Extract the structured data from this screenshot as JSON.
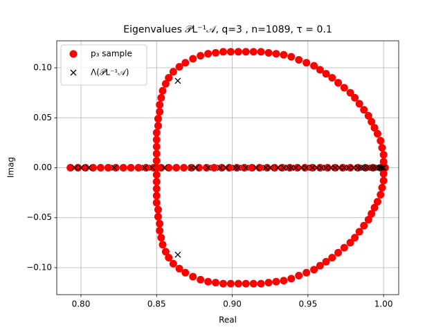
{
  "chart_data": {
    "type": "scatter",
    "title": "Eigenvalues 𝒫L⁻¹𝒜, q=3 , n=1089, τ = 0.1",
    "xlabel": "Real",
    "ylabel": "Imag",
    "xlim": [
      0.784,
      1.01
    ],
    "ylim": [
      -0.127,
      0.127
    ],
    "xticks": [
      {
        "value": 0.8,
        "label": "0.80"
      },
      {
        "value": 0.85,
        "label": "0.85"
      },
      {
        "value": 0.9,
        "label": "0.90"
      },
      {
        "value": 0.95,
        "label": "0.95"
      },
      {
        "value": 1.0,
        "label": "1.00"
      }
    ],
    "yticks": [
      {
        "value": -0.1,
        "label": "−0.10"
      },
      {
        "value": -0.05,
        "label": "−0.05"
      },
      {
        "value": 0,
        "label": "0.00"
      },
      {
        "value": 0.05,
        "label": "0.05"
      },
      {
        "value": 0.1,
        "label": "0.10"
      }
    ],
    "grid": true,
    "legend": "upper left",
    "series": [
      {
        "name": "p₃ sample",
        "color": "#ff0000",
        "marker": "o",
        "x": [
          0.793,
          0.798,
          0.803,
          0.808,
          0.813,
          0.818,
          0.823,
          0.828,
          0.833,
          0.838,
          0.843,
          0.848,
          0.853,
          0.858,
          0.863,
          0.868,
          0.873,
          0.878,
          0.883,
          0.888,
          0.893,
          0.898,
          0.903,
          0.908,
          0.913,
          0.918,
          0.923,
          0.928,
          0.933,
          0.938,
          0.943,
          0.948,
          0.953,
          0.958,
          0.963,
          0.968,
          0.973,
          0.978,
          0.983,
          0.988,
          0.993,
          0.998,
          1.0,
          0.85,
          0.85,
          0.85,
          0.85,
          0.85,
          0.85,
          0.851,
          0.851,
          0.852,
          0.852,
          0.853,
          0.854,
          0.856,
          0.858,
          0.861,
          0.865,
          0.869,
          0.874,
          0.879,
          0.884,
          0.889,
          0.894,
          0.899,
          0.904,
          0.909,
          0.914,
          0.919,
          0.924,
          0.929,
          0.934,
          0.939,
          0.944,
          0.949,
          0.954,
          0.958,
          0.962,
          0.966,
          0.97,
          0.974,
          0.978,
          0.981,
          0.984,
          0.987,
          0.99,
          0.992,
          0.994,
          0.996,
          0.998,
          0.999,
          1.0,
          1.0,
          1.001,
          0.85,
          0.85,
          0.85,
          0.85,
          0.85,
          0.851,
          0.851,
          0.852,
          0.852,
          0.853,
          0.854,
          0.856,
          0.858,
          0.861,
          0.865,
          0.869,
          0.874,
          0.879,
          0.884,
          0.889,
          0.894,
          0.899,
          0.904,
          0.909,
          0.914,
          0.919,
          0.924,
          0.929,
          0.934,
          0.939,
          0.944,
          0.949,
          0.954,
          0.958,
          0.962,
          0.966,
          0.97,
          0.974,
          0.978,
          0.981,
          0.984,
          0.987,
          0.99,
          0.992,
          0.994,
          0.996,
          0.998,
          0.999,
          1.0,
          1.0
        ],
        "y": [
          0,
          0,
          0,
          0,
          0,
          0,
          0,
          0,
          0,
          0,
          0,
          0,
          0,
          0,
          0,
          0,
          0,
          0,
          0,
          0,
          0,
          0,
          0,
          0,
          0,
          0,
          0,
          0,
          0,
          0,
          0,
          0,
          0,
          0,
          0,
          0,
          0,
          0,
          0,
          0,
          0,
          0,
          0,
          0.0,
          0.007,
          0.014,
          0.021,
          0.028,
          0.035,
          0.042,
          0.049,
          0.056,
          0.063,
          0.07,
          0.077,
          0.084,
          0.09,
          0.096,
          0.101,
          0.105,
          0.109,
          0.112,
          0.114,
          0.115,
          0.116,
          0.116,
          0.116,
          0.116,
          0.116,
          0.116,
          0.115,
          0.114,
          0.113,
          0.111,
          0.108,
          0.105,
          0.102,
          0.098,
          0.094,
          0.09,
          0.085,
          0.08,
          0.075,
          0.07,
          0.064,
          0.058,
          0.052,
          0.046,
          0.04,
          0.034,
          0.027,
          0.02,
          0.013,
          0.006,
          0.0,
          -0.007,
          -0.014,
          -0.021,
          -0.028,
          -0.035,
          -0.042,
          -0.049,
          -0.056,
          -0.063,
          -0.07,
          -0.077,
          -0.084,
          -0.09,
          -0.096,
          -0.101,
          -0.105,
          -0.109,
          -0.112,
          -0.114,
          -0.115,
          -0.116,
          -0.116,
          -0.116,
          -0.116,
          -0.116,
          -0.116,
          -0.115,
          -0.114,
          -0.113,
          -0.111,
          -0.108,
          -0.105,
          -0.102,
          -0.098,
          -0.094,
          -0.09,
          -0.085,
          -0.08,
          -0.075,
          -0.07,
          -0.064,
          -0.058,
          -0.052,
          -0.046,
          -0.04,
          -0.034,
          -0.027,
          -0.02,
          -0.013,
          -0.006
        ]
      },
      {
        "name": "Λ(𝒫L⁻¹𝒜)",
        "color": "#000000",
        "marker": "x",
        "x": [
          0.796,
          0.8,
          0.805,
          0.822,
          0.842,
          0.847,
          0.855,
          0.873,
          0.876,
          0.884,
          0.892,
          0.896,
          0.902,
          0.904,
          0.909,
          0.916,
          0.922,
          0.925,
          0.93,
          0.934,
          0.937,
          0.939,
          0.942,
          0.946,
          0.949,
          0.953,
          0.956,
          0.959,
          0.962,
          0.965,
          0.968,
          0.971,
          0.974,
          0.977,
          0.98,
          0.983,
          0.985,
          0.987,
          0.989,
          0.991,
          0.993,
          0.995,
          0.997,
          0.998,
          0.999,
          1.0,
          0.864,
          0.864
        ],
        "y": [
          0,
          0,
          0,
          0,
          0,
          0,
          0,
          0,
          0,
          0,
          0,
          0,
          0,
          0,
          0,
          0,
          0,
          0,
          0,
          0,
          0,
          0,
          0,
          0,
          0,
          0,
          0,
          0,
          0,
          0,
          0,
          0,
          0,
          0,
          0,
          0,
          0,
          0,
          0,
          0,
          0,
          0,
          0,
          0,
          0,
          0,
          0.087,
          -0.087
        ]
      }
    ]
  }
}
